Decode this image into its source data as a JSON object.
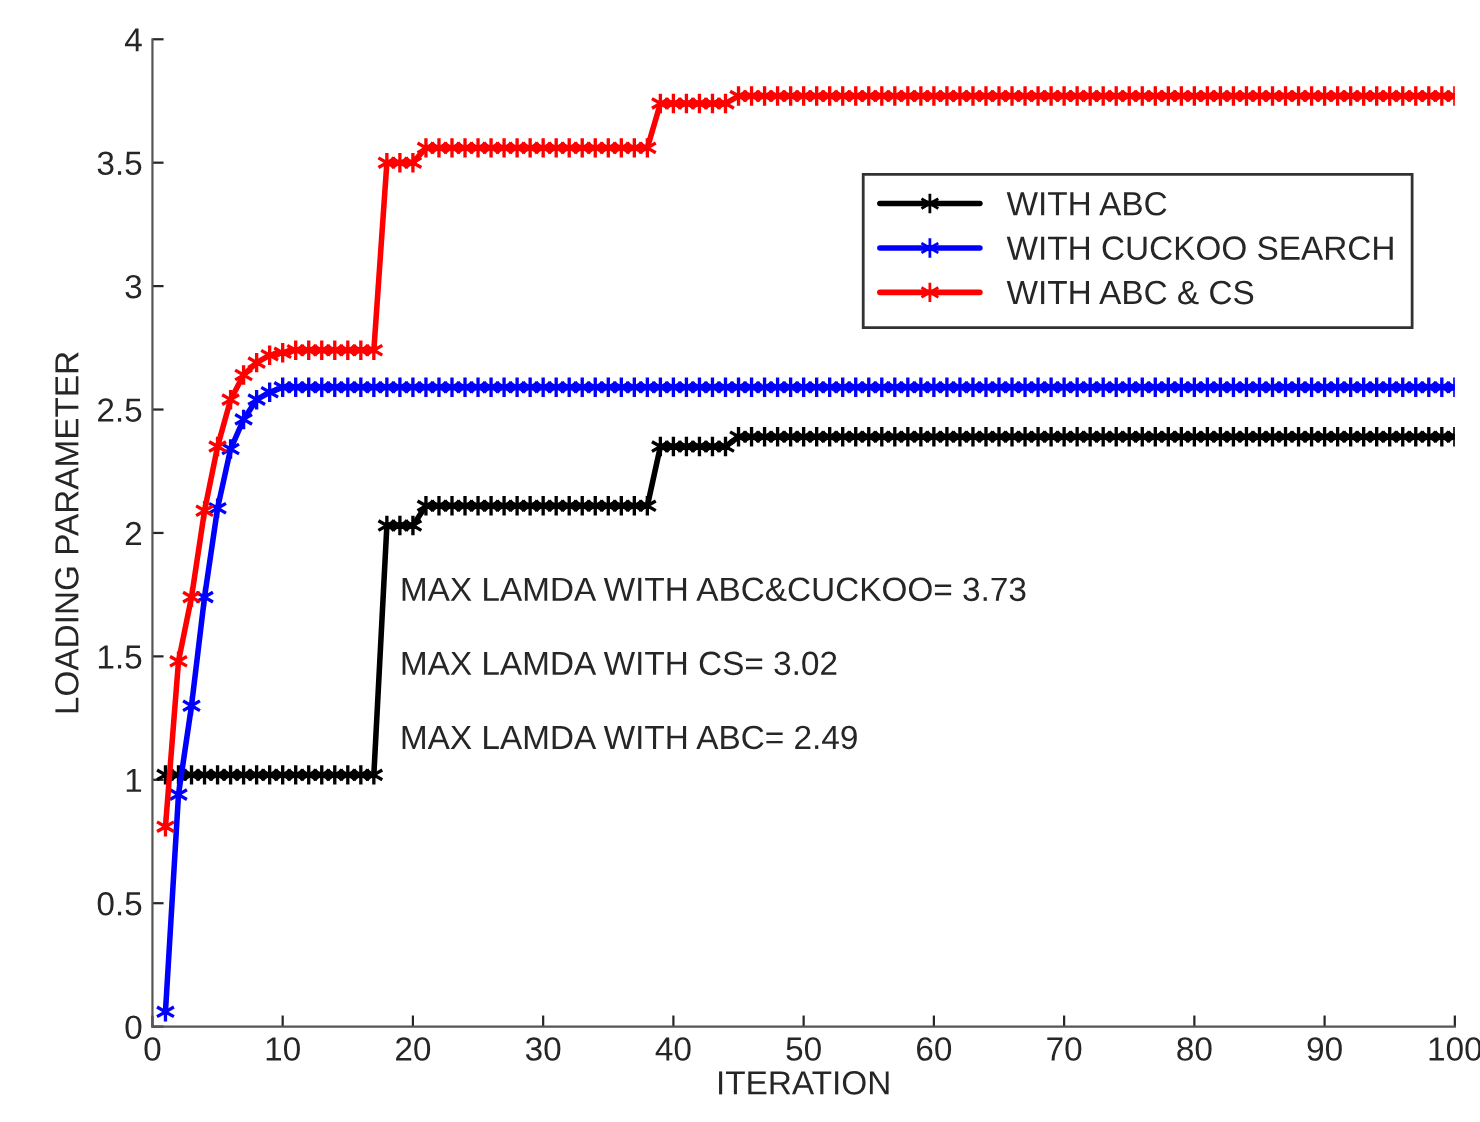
{
  "chart_data": {
    "type": "line",
    "xlabel": "ITERATION",
    "ylabel": "LOADING PARAMETER",
    "x": [
      1,
      2,
      3,
      4,
      5,
      6,
      7,
      8,
      9,
      10,
      11,
      12,
      13,
      14,
      15,
      16,
      17,
      18,
      19,
      20,
      21,
      22,
      23,
      24,
      25,
      26,
      27,
      28,
      29,
      30,
      31,
      32,
      33,
      34,
      35,
      36,
      37,
      38,
      39,
      40,
      41,
      42,
      43,
      44,
      45,
      46,
      47,
      48,
      49,
      50,
      51,
      52,
      53,
      54,
      55,
      56,
      57,
      58,
      59,
      60,
      61,
      62,
      63,
      64,
      65,
      66,
      67,
      68,
      69,
      70,
      71,
      72,
      73,
      74,
      75,
      76,
      77,
      78,
      79,
      80,
      81,
      82,
      83,
      84,
      85,
      86,
      87,
      88,
      89,
      90,
      91,
      92,
      93,
      94,
      95,
      96,
      97,
      98,
      99,
      100
    ],
    "series": [
      {
        "name": "WITH ABC",
        "color": "#000000",
        "values": [
          1.02,
          1.02,
          1.02,
          1.02,
          1.02,
          1.02,
          1.02,
          1.02,
          1.02,
          1.02,
          1.02,
          1.02,
          1.02,
          1.02,
          1.02,
          1.02,
          1.02,
          2.03,
          2.03,
          2.03,
          2.11,
          2.11,
          2.11,
          2.11,
          2.11,
          2.11,
          2.11,
          2.11,
          2.11,
          2.11,
          2.11,
          2.11,
          2.11,
          2.11,
          2.11,
          2.11,
          2.11,
          2.11,
          2.35,
          2.35,
          2.35,
          2.35,
          2.35,
          2.35,
          2.39,
          2.39,
          2.39,
          2.39,
          2.39,
          2.39,
          2.39,
          2.39,
          2.39,
          2.39,
          2.39,
          2.39,
          2.39,
          2.39,
          2.39,
          2.39,
          2.39,
          2.39,
          2.39,
          2.39,
          2.39,
          2.39,
          2.39,
          2.39,
          2.39,
          2.39,
          2.39,
          2.39,
          2.39,
          2.39,
          2.39,
          2.39,
          2.39,
          2.39,
          2.39,
          2.39,
          2.39,
          2.39,
          2.39,
          2.39,
          2.39,
          2.39,
          2.39,
          2.39,
          2.39,
          2.39,
          2.39,
          2.39,
          2.39,
          2.39,
          2.39,
          2.39,
          2.39,
          2.39,
          2.39,
          2.39
        ]
      },
      {
        "name": "WITH CUCKOO SEARCH",
        "color": "#0000ff",
        "values": [
          0.06,
          0.94,
          1.3,
          1.74,
          2.1,
          2.34,
          2.46,
          2.54,
          2.57,
          2.59,
          2.59,
          2.59,
          2.59,
          2.59,
          2.59,
          2.59,
          2.59,
          2.59,
          2.59,
          2.59,
          2.59,
          2.59,
          2.59,
          2.59,
          2.59,
          2.59,
          2.59,
          2.59,
          2.59,
          2.59,
          2.59,
          2.59,
          2.59,
          2.59,
          2.59,
          2.59,
          2.59,
          2.59,
          2.59,
          2.59,
          2.59,
          2.59,
          2.59,
          2.59,
          2.59,
          2.59,
          2.59,
          2.59,
          2.59,
          2.59,
          2.59,
          2.59,
          2.59,
          2.59,
          2.59,
          2.59,
          2.59,
          2.59,
          2.59,
          2.59,
          2.59,
          2.59,
          2.59,
          2.59,
          2.59,
          2.59,
          2.59,
          2.59,
          2.59,
          2.59,
          2.59,
          2.59,
          2.59,
          2.59,
          2.59,
          2.59,
          2.59,
          2.59,
          2.59,
          2.59,
          2.59,
          2.59,
          2.59,
          2.59,
          2.59,
          2.59,
          2.59,
          2.59,
          2.59,
          2.59,
          2.59,
          2.59,
          2.59,
          2.59,
          2.59,
          2.59,
          2.59,
          2.59,
          2.59,
          2.59
        ]
      },
      {
        "name": "WITH ABC & CS",
        "color": "#ff0000",
        "values": [
          0.81,
          1.48,
          1.74,
          2.09,
          2.35,
          2.54,
          2.64,
          2.69,
          2.72,
          2.73,
          2.74,
          2.74,
          2.74,
          2.74,
          2.74,
          2.74,
          2.74,
          3.5,
          3.5,
          3.5,
          3.56,
          3.56,
          3.56,
          3.56,
          3.56,
          3.56,
          3.56,
          3.56,
          3.56,
          3.56,
          3.56,
          3.56,
          3.56,
          3.56,
          3.56,
          3.56,
          3.56,
          3.56,
          3.74,
          3.74,
          3.74,
          3.74,
          3.74,
          3.74,
          3.77,
          3.77,
          3.77,
          3.77,
          3.77,
          3.77,
          3.77,
          3.77,
          3.77,
          3.77,
          3.77,
          3.77,
          3.77,
          3.77,
          3.77,
          3.77,
          3.77,
          3.77,
          3.77,
          3.77,
          3.77,
          3.77,
          3.77,
          3.77,
          3.77,
          3.77,
          3.77,
          3.77,
          3.77,
          3.77,
          3.77,
          3.77,
          3.77,
          3.77,
          3.77,
          3.77,
          3.77,
          3.77,
          3.77,
          3.77,
          3.77,
          3.77,
          3.77,
          3.77,
          3.77,
          3.77,
          3.77,
          3.77,
          3.77,
          3.77,
          3.77,
          3.77,
          3.77,
          3.77,
          3.77,
          3.77
        ]
      }
    ],
    "annotations": [
      {
        "text": "MAX LAMDA WITH ABC&CUCKOO= 3.73"
      },
      {
        "text": "MAX LAMDA WITH CS= 3.02"
      },
      {
        "text": "MAX LAMDA WITH ABC= 2.49"
      }
    ],
    "xlim": [
      0,
      100
    ],
    "xticks": [
      0,
      10,
      20,
      30,
      40,
      50,
      60,
      70,
      80,
      90,
      100
    ],
    "ylim": [
      0,
      4
    ],
    "yticks": [
      0,
      0.5,
      1,
      1.5,
      2,
      2.5,
      3,
      3.5,
      4
    ],
    "legend": "top right",
    "marker": "cross",
    "line_style": "solid",
    "grid": false
  }
}
